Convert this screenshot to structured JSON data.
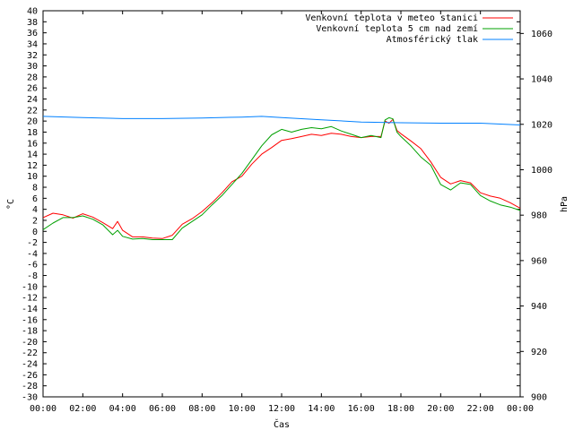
{
  "chart_data": {
    "type": "line",
    "title": "",
    "xlabel": "Čas",
    "ylabel": "°C",
    "y2label": "hPa",
    "grid": false,
    "legend_placement": "top-right",
    "xlim": [
      0,
      24
    ],
    "ylim": [
      -30,
      40
    ],
    "y2lim": [
      900,
      1070
    ],
    "x_ticks": [
      0,
      2,
      4,
      6,
      8,
      10,
      12,
      14,
      16,
      18,
      20,
      22,
      24
    ],
    "x_tick_labels": [
      "00:00",
      "02:00",
      "04:00",
      "06:00",
      "08:00",
      "10:00",
      "12:00",
      "14:00",
      "16:00",
      "18:00",
      "20:00",
      "22:00",
      "00:00"
    ],
    "y_ticks": [
      -30,
      -28,
      -26,
      -24,
      -22,
      -20,
      -18,
      -16,
      -14,
      -12,
      -10,
      -8,
      -6,
      -4,
      -2,
      0,
      2,
      4,
      6,
      8,
      10,
      12,
      14,
      16,
      18,
      20,
      22,
      24,
      26,
      28,
      30,
      32,
      34,
      36,
      38,
      40
    ],
    "y2_ticks": [
      900,
      920,
      940,
      960,
      980,
      1000,
      1020,
      1040,
      1060
    ],
    "series": [
      {
        "name": "Venkovní teplota v meteo stanici",
        "color": "#ff0000",
        "axis": "y",
        "x": [
          0,
          0.5,
          1,
          1.5,
          2,
          2.5,
          3,
          3.5,
          3.75,
          4,
          4.5,
          5,
          5.5,
          6,
          6.5,
          7,
          7.5,
          8,
          8.5,
          9,
          9.5,
          10,
          10.5,
          11,
          11.5,
          12,
          12.5,
          13,
          13.5,
          14,
          14.5,
          15,
          15.5,
          16,
          16.5,
          17,
          17.2,
          17.4,
          17.6,
          17.8,
          18,
          18.5,
          19,
          19.5,
          20,
          20.5,
          21,
          21.5,
          22,
          22.5,
          23,
          23.5,
          24
        ],
        "y": [
          2.5,
          3.3,
          3.0,
          2.4,
          3.2,
          2.6,
          1.6,
          0.5,
          1.8,
          0.2,
          -1.0,
          -1.0,
          -1.2,
          -1.3,
          -0.7,
          1.3,
          2.3,
          3.6,
          5.2,
          7.0,
          9.0,
          10.0,
          12.2,
          14.0,
          15.2,
          16.5,
          16.8,
          17.2,
          17.6,
          17.4,
          17.8,
          17.6,
          17.2,
          17.0,
          17.2,
          17.2,
          20.0,
          19.6,
          20.3,
          18.3,
          17.7,
          16.4,
          15.0,
          12.6,
          9.8,
          8.6,
          9.2,
          8.8,
          7.0,
          6.4,
          6.0,
          5.2,
          4.2
        ]
      },
      {
        "name": "Venkovní teplota 5 cm nad zemí",
        "color": "#00a000",
        "axis": "y",
        "x": [
          0,
          0.5,
          1,
          1.5,
          2,
          2.5,
          3,
          3.5,
          3.75,
          4,
          4.5,
          5,
          5.5,
          6,
          6.5,
          7,
          7.5,
          8,
          8.5,
          9,
          9.5,
          10,
          10.5,
          11,
          11.5,
          12,
          12.5,
          13,
          13.5,
          14,
          14.5,
          15,
          15.5,
          16,
          16.5,
          17,
          17.2,
          17.4,
          17.6,
          17.8,
          18,
          18.5,
          19,
          19.5,
          20,
          20.5,
          21,
          21.5,
          22,
          22.5,
          23,
          23.5,
          24
        ],
        "y": [
          0.3,
          1.5,
          2.5,
          2.5,
          2.8,
          2.2,
          1.2,
          -0.6,
          0.2,
          -0.9,
          -1.4,
          -1.3,
          -1.5,
          -1.5,
          -1.5,
          0.6,
          1.8,
          3.0,
          4.8,
          6.5,
          8.5,
          10.5,
          13.0,
          15.5,
          17.5,
          18.5,
          18.0,
          18.5,
          18.8,
          18.6,
          19.0,
          18.2,
          17.6,
          17.0,
          17.4,
          17.0,
          20.2,
          20.6,
          20.4,
          18.0,
          17.2,
          15.5,
          13.5,
          12.0,
          8.5,
          7.5,
          8.8,
          8.5,
          6.5,
          5.5,
          4.8,
          4.4,
          3.8
        ]
      },
      {
        "name": "Atmosférický tlak",
        "color": "#0080ff",
        "axis": "y2",
        "x": [
          0,
          2,
          4,
          6,
          8,
          10,
          11,
          12,
          14,
          16,
          18,
          20,
          22,
          24
        ],
        "y": [
          1023.5,
          1023,
          1022.5,
          1022.5,
          1022.8,
          1023.2,
          1023.5,
          1023,
          1022,
          1021,
          1020.7,
          1020.5,
          1020.5,
          1019.7
        ]
      }
    ]
  }
}
